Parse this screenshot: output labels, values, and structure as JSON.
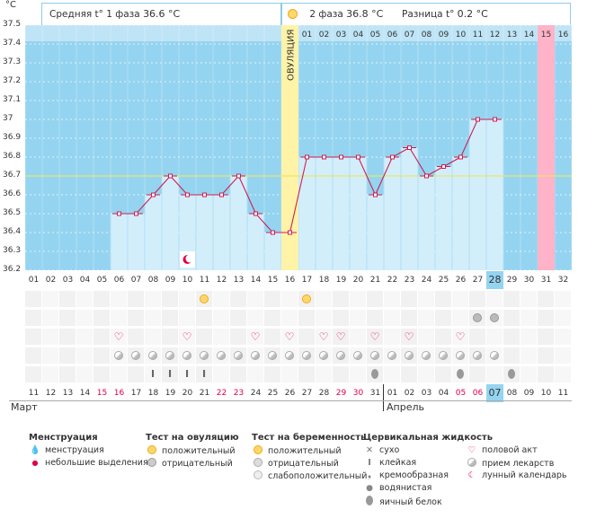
{
  "chart_data": {
    "type": "line",
    "unit_label": "°C",
    "ylim": [
      36.2,
      37.5
    ],
    "yticks": [
      "37.5",
      "37.4",
      "37.3",
      "37.2",
      "37.1",
      "37",
      "36.9",
      "36.8",
      "36.7",
      "36.6",
      "36.5",
      "36.4",
      "36.3",
      "36.2"
    ],
    "cover_line": 36.7,
    "days": [
      "01",
      "02",
      "03",
      "04",
      "05",
      "06",
      "07",
      "08",
      "09",
      "10",
      "11",
      "12",
      "13",
      "14",
      "15",
      "16",
      "17",
      "18",
      "19",
      "20",
      "21",
      "22",
      "23",
      "24",
      "25",
      "26",
      "27",
      "28",
      "29",
      "30",
      "31",
      "32"
    ],
    "temperatures": [
      null,
      null,
      null,
      null,
      null,
      36.5,
      36.5,
      36.6,
      36.7,
      36.6,
      36.6,
      36.6,
      36.7,
      36.5,
      36.4,
      36.4,
      36.8,
      36.8,
      36.8,
      36.8,
      36.6,
      36.8,
      36.85,
      36.7,
      36.75,
      36.8,
      37.0,
      37.0,
      null,
      null,
      null,
      null
    ],
    "ovulation_day_index": 15,
    "ovulation_label": "ОВУЛЯЦИЯ",
    "top_days": [
      "01",
      "02",
      "03",
      "04",
      "05",
      "06",
      "07",
      "08",
      "09",
      "10",
      "11",
      "12",
      "13",
      "14",
      "15",
      "16"
    ],
    "highlight_today_index": 27,
    "highlight_pink_index": 30
  },
  "header": {
    "phase1_label": "Средняя t° 1 фаза",
    "phase1_value": "36.6 °C",
    "phase2_label": "2 фаза",
    "phase2_value": "36.8 °C",
    "diff_label": "Разница t°",
    "diff_value": "0.2 °C"
  },
  "calendar": {
    "dates": [
      "11",
      "12",
      "13",
      "14",
      "15",
      "16",
      "17",
      "18",
      "19",
      "20",
      "21",
      "22",
      "23",
      "24",
      "25",
      "26",
      "27",
      "28",
      "29",
      "30",
      "31",
      "01",
      "02",
      "03",
      "04",
      "05",
      "06",
      "07",
      "08",
      "09",
      "10",
      "11"
    ],
    "red_indices": [
      4,
      5,
      11,
      12,
      18,
      19,
      25,
      26
    ],
    "month1": "Март",
    "month2": "Апрель"
  },
  "legend": {
    "menstruation_title": "Менструация",
    "menstruation": "менструация",
    "spotting": "небольшие выделения",
    "ovulation_test_title": "Тест на овуляцию",
    "ovulation_positive": "положительный",
    "ovulation_negative": "отрицательный",
    "pregnancy_test_title": "Тест на беременность",
    "pregnancy_positive": "положительный",
    "pregnancy_negative": "отрицательный",
    "pregnancy_weak": "слабоположительный",
    "cervical_title": "Цервикальная жидкость",
    "cervical_dry": "сухо",
    "cervical_sticky": "клейкая",
    "cervical_creamy": "кремообразная",
    "cervical_watery": "водянистая",
    "cervical_eggwhite": "яичный белок",
    "other_intercourse": "половой акт",
    "other_medicine": "прием лекарств",
    "other_lunar": "лунный календарь"
  }
}
